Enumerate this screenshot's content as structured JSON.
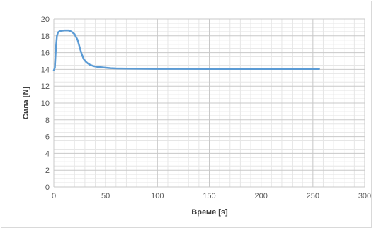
{
  "chart_data": {
    "type": "line",
    "title": "",
    "xlabel": "Време [s]",
    "ylabel": "Сила [N]",
    "xlim": [
      0,
      300
    ],
    "ylim": [
      0,
      20
    ],
    "x_ticks": [
      "0",
      "50",
      "100",
      "150",
      "200",
      "250",
      "300"
    ],
    "y_ticks": [
      "0",
      "2",
      "4",
      "6",
      "8",
      "10",
      "12",
      "14",
      "16",
      "18",
      "20"
    ],
    "grid": true,
    "minor_grid": true,
    "legend": "none",
    "line_color": "#5b9bd5",
    "series": [
      {
        "x": [
          0,
          1,
          2,
          3,
          4,
          5,
          7,
          10,
          14,
          17,
          20,
          23,
          25,
          27,
          29,
          31,
          33,
          35,
          38,
          42,
          46,
          50,
          55,
          60,
          70,
          80,
          100,
          150,
          200,
          250,
          256
        ],
        "y": [
          13.9,
          14.2,
          16.5,
          18.0,
          18.4,
          18.5,
          18.6,
          18.65,
          18.65,
          18.5,
          18.2,
          17.5,
          16.6,
          15.8,
          15.2,
          14.9,
          14.7,
          14.55,
          14.4,
          14.3,
          14.25,
          14.2,
          14.15,
          14.12,
          14.1,
          14.08,
          14.07,
          14.06,
          14.06,
          14.06,
          14.06
        ]
      }
    ]
  }
}
